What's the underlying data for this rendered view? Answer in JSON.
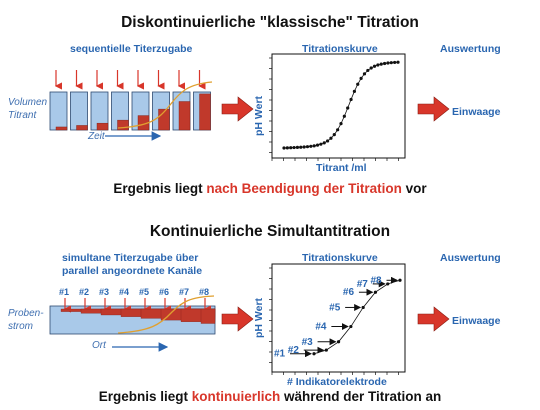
{
  "top": {
    "title": "Diskontinuierliche \"klassische\" Titration",
    "col1": "sequentielle Titerzugabe",
    "col2": "Titrationskurve",
    "col3": "Auswertung",
    "ylabel_left": [
      "Volumen",
      "Titrant"
    ],
    "time_label": "Zeit",
    "axis_y": "pH Wert",
    "axis_x": "Titrant  /ml",
    "result_label": "Einwaage",
    "result_pre": "Ergebnis liegt ",
    "result_em": "nach Beendigung der Titration",
    "result_post": " vor"
  },
  "bottom": {
    "title": "Kontinuierliche Simultantitration",
    "col1_line1": "simultane Titerzugabe über",
    "col1_line2": "parallel angeordnete Kanäle",
    "col2": "Titrationskurve",
    "col3": "Auswertung",
    "channels": [
      "#1",
      "#2",
      "#3",
      "#4",
      "#5",
      "#6",
      "#7",
      "#8"
    ],
    "ylabel_left": [
      "Proben-",
      "strom"
    ],
    "place_label": "Ort",
    "axis_y": "pH Wert",
    "axis_x": "# Indikatorelektrode",
    "result_label": "Einwaage",
    "result_pre": "Ergebnis liegt ",
    "result_em": "kontinuierlich",
    "result_post": " während der Titration an"
  },
  "colors": {
    "accent_blue": "#2a66b0",
    "bar_red": "#c0392b",
    "box_fill": "#a9c9e9",
    "arrow_red": "#d8362a",
    "sigmoid": "#e0a030"
  }
}
